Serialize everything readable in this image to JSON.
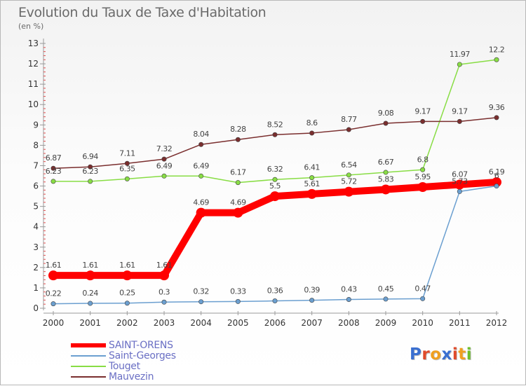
{
  "chart_data": {
    "type": "line",
    "title": "Evolution du Taux de Taxe d'Habitation",
    "subtitle": "(en %)",
    "x": [
      "2000",
      "2001",
      "2002",
      "2003",
      "2004",
      "2005",
      "2006",
      "2007",
      "2008",
      "2009",
      "2010",
      "2011",
      "2012"
    ],
    "ylim": [
      0,
      13
    ],
    "yticks": [
      0,
      1,
      2,
      3,
      4,
      5,
      6,
      7,
      8,
      9,
      10,
      11,
      12,
      13
    ],
    "grid": false,
    "legend_position": "bottom-left",
    "series": [
      {
        "name": "SAINT-ORENS",
        "color": "#ff0000",
        "values": [
          1.61,
          1.61,
          1.61,
          1.61,
          4.69,
          4.69,
          5.5,
          5.61,
          5.72,
          5.83,
          5.95,
          6.07,
          6.19
        ],
        "labels": [
          "1.61",
          "1.61",
          "1.61",
          "1.61",
          "4.69",
          "4.69",
          "5.5",
          "5.61",
          "5.72",
          "5.83",
          "5.95",
          "6.07",
          "6.19"
        ]
      },
      {
        "name": "Saint-Georges",
        "color": "#6b9fd0",
        "values": [
          0.22,
          0.24,
          0.25,
          0.3,
          0.32,
          0.33,
          0.36,
          0.39,
          0.43,
          0.45,
          0.47,
          5.73,
          6
        ],
        "labels": [
          "0.22",
          "0.24",
          "0.25",
          "0.3",
          "0.32",
          "0.33",
          "0.36",
          "0.39",
          "0.43",
          "0.45",
          "0.47",
          "5.73",
          "6"
        ]
      },
      {
        "name": "Touget",
        "color": "#88dd44",
        "values": [
          6.23,
          6.23,
          6.35,
          6.49,
          6.49,
          6.17,
          6.32,
          6.41,
          6.54,
          6.67,
          6.8,
          11.97,
          12.2
        ],
        "labels": [
          "6.23",
          "6.23",
          "6.35",
          "6.49",
          "6.49",
          "6.17",
          "6.32",
          "6.41",
          "6.54",
          "6.67",
          "6.8",
          "11.97",
          "12.2"
        ]
      },
      {
        "name": "Mauvezin",
        "color": "#7a2e2e",
        "values": [
          6.87,
          6.94,
          7.11,
          7.32,
          8.04,
          8.28,
          8.52,
          8.6,
          8.77,
          9.08,
          9.17,
          9.17,
          9.36
        ],
        "labels": [
          "6.87",
          "6.94",
          "7.11",
          "7.32",
          "8.04",
          "8.28",
          "8.52",
          "8.6",
          "8.77",
          "9.08",
          "9.17",
          "9.17",
          "9.36"
        ]
      }
    ]
  },
  "legend": {
    "items": [
      {
        "label": "SAINT-ORENS"
      },
      {
        "label": "Saint-Georges"
      },
      {
        "label": "Touget"
      },
      {
        "label": "Mauvezin"
      }
    ]
  },
  "logo": {
    "text": "Proxiti",
    "colors": [
      "#3a6fd0",
      "#e04a2a",
      "#f0a020",
      "#3a6fd0",
      "#e04a2a",
      "#f0a020",
      "#6cbf2a"
    ]
  }
}
